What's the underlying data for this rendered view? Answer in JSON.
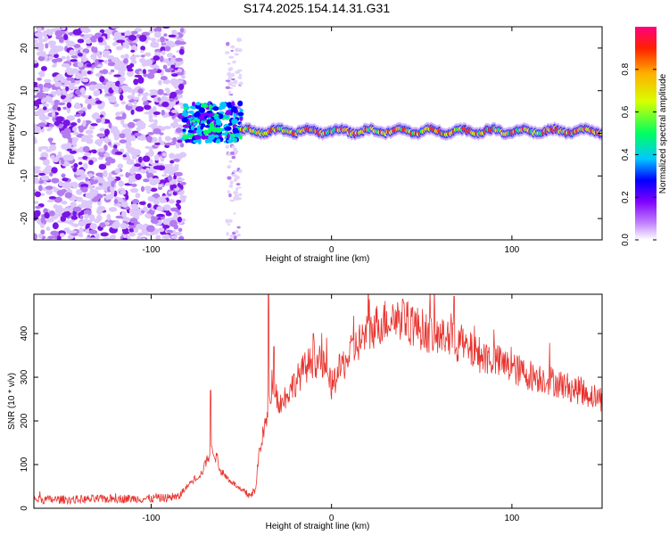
{
  "title": "S174.2025.154.14.31.G31",
  "colors": {
    "snr_line": "#e8332e",
    "noise": "#8a2be2",
    "signal_core": "#ff2020",
    "signal_mid": "#22dd22",
    "signal_edge": "#2020ff"
  },
  "chart_data": [
    {
      "type": "heatmap",
      "xlabel": "Height of straight line (km)",
      "ylabel": "Frequency (Hz)",
      "xlim": [
        -165,
        150
      ],
      "ylim": [
        -25,
        25
      ],
      "xticks": [
        -100,
        0,
        100
      ],
      "xtick_labels": [
        "-100",
        "0",
        "100"
      ],
      "yticks": [
        -20,
        -10,
        0,
        10,
        20
      ],
      "ytick_labels": [
        "-20",
        "-10",
        "0",
        "10",
        "20"
      ],
      "grid": false,
      "colorbar": {
        "label": "Normalized spectral amplitude",
        "range": [
          0,
          1
        ],
        "ticks": [
          0.0,
          0.2,
          0.4,
          0.6,
          0.8
        ],
        "tick_labels": [
          "0.0",
          "0.2",
          "0.4",
          "0.6",
          "0.8"
        ],
        "colormap": [
          "#ffffff",
          "#c080ff",
          "#8000ff",
          "#0000ff",
          "#00c8ff",
          "#00ff60",
          "#d8ff00",
          "#ffb000",
          "#ff2000",
          "#ff0080"
        ]
      },
      "regions": [
        {
          "name": "noise",
          "x_range": [
            -165,
            -82
          ],
          "amplitude": "low (0.1-0.3)"
        },
        {
          "name": "onset",
          "x_range": [
            -82,
            -50
          ],
          "freq_range": [
            -2,
            7
          ],
          "amplitude": "0.2-0.5"
        },
        {
          "name": "sparse",
          "x_range": [
            -58,
            -50
          ],
          "freq_range": [
            -25,
            22
          ],
          "amplitude": "low"
        },
        {
          "name": "tone",
          "x_range": [
            -50,
            150
          ],
          "center_freq": 0.5,
          "amplitude": "0.5-0.95"
        }
      ]
    },
    {
      "type": "line",
      "xlabel": "Height of straight line (km)",
      "ylabel": "SNR (10 * v/v)",
      "xlim": [
        -165,
        150
      ],
      "ylim": [
        0,
        490
      ],
      "xticks": [
        -100,
        0,
        100
      ],
      "xtick_labels": [
        "-100",
        "0",
        "100"
      ],
      "yticks": [
        0,
        100,
        200,
        300,
        400
      ],
      "ytick_labels": [
        "0",
        "100",
        "200",
        "300",
        "400"
      ],
      "grid": false,
      "series": [
        {
          "x": [
            -165,
            -140,
            -120,
            -100,
            -85,
            -78,
            -72,
            -66,
            -62,
            -58,
            -55,
            -50,
            -46,
            -42,
            -40,
            -38,
            -35,
            -32,
            -30,
            -28,
            -25,
            -20,
            -15,
            -10,
            -5,
            0,
            5,
            10,
            15,
            20,
            25,
            30,
            35,
            40,
            45,
            50,
            55,
            60,
            65,
            70,
            75,
            80,
            90,
            100,
            110,
            120,
            130,
            140,
            150
          ],
          "y": [
            20,
            20,
            22,
            22,
            25,
            60,
            80,
            140,
            90,
            70,
            60,
            40,
            30,
            40,
            130,
            170,
            220,
            300,
            250,
            240,
            260,
            290,
            320,
            340,
            330,
            280,
            320,
            350,
            380,
            400,
            420,
            430,
            440,
            430,
            420,
            410,
            400,
            390,
            385,
            375,
            365,
            355,
            340,
            320,
            305,
            295,
            280,
            265,
            250
          ]
        }
      ],
      "spikes": [
        {
          "x": -67,
          "y": 270
        },
        {
          "x": -35,
          "y": 490
        },
        {
          "x": -32,
          "y": 370
        },
        {
          "x": -10,
          "y": 400
        },
        {
          "x": 40,
          "y": 470
        },
        {
          "x": 45,
          "y": 460
        },
        {
          "x": 68,
          "y": 485
        }
      ]
    }
  ]
}
